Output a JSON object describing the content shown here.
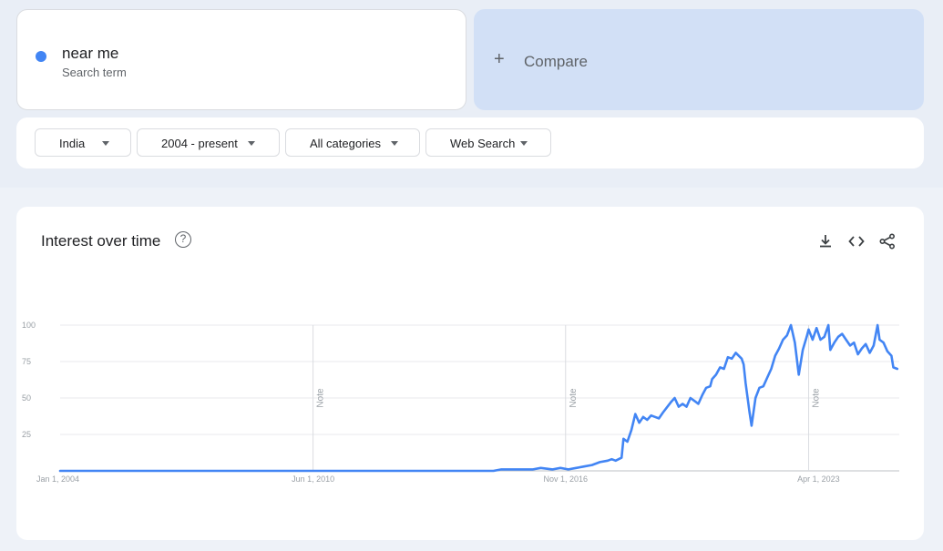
{
  "search_term": {
    "name": "near me",
    "type": "Search term",
    "color": "#4285f4"
  },
  "compare": {
    "plus": "+",
    "label": "Compare"
  },
  "filters": [
    {
      "label": "India"
    },
    {
      "label": "2004 - present"
    },
    {
      "label": "All categories"
    },
    {
      "label": "Web Search"
    }
  ],
  "chart_header": {
    "title": "Interest over time",
    "help": "?"
  },
  "icons": {
    "download": "download-icon",
    "embed": "embed-icon",
    "share": "share-icon"
  },
  "chart_data": {
    "type": "line",
    "title": "Interest over time",
    "xlabel": "",
    "ylabel": "",
    "ylim": [
      0,
      100
    ],
    "yticks": [
      25,
      50,
      75,
      100
    ],
    "xticks": [
      {
        "label": "Jan 1, 2004",
        "x": 2004.0
      },
      {
        "label": "Jun 1, 2010",
        "x": 2010.42
      },
      {
        "label": "Nov 1, 2016",
        "x": 2016.83
      },
      {
        "label": "Apr 1, 2023",
        "x": 2023.25
      }
    ],
    "notes": [
      {
        "label": "Note",
        "x": 2010.42
      },
      {
        "label": "Note",
        "x": 2016.83
      },
      {
        "label": "Note",
        "x": 2023.0
      }
    ],
    "xlim": [
      2004.0,
      2025.3
    ],
    "grid": true,
    "series": [
      {
        "color": "#4285f4",
        "points": [
          [
            2004.0,
            0
          ],
          [
            2008.0,
            0
          ],
          [
            2012.0,
            0
          ],
          [
            2014.0,
            0
          ],
          [
            2015.0,
            0
          ],
          [
            2015.2,
            1
          ],
          [
            2015.6,
            1
          ],
          [
            2016.0,
            1
          ],
          [
            2016.2,
            2
          ],
          [
            2016.5,
            1
          ],
          [
            2016.7,
            2
          ],
          [
            2016.9,
            1
          ],
          [
            2017.1,
            2
          ],
          [
            2017.3,
            3
          ],
          [
            2017.5,
            4
          ],
          [
            2017.7,
            6
          ],
          [
            2017.9,
            7
          ],
          [
            2018.0,
            8
          ],
          [
            2018.1,
            7
          ],
          [
            2018.25,
            9
          ],
          [
            2018.3,
            22
          ],
          [
            2018.4,
            20
          ],
          [
            2018.5,
            28
          ],
          [
            2018.6,
            39
          ],
          [
            2018.7,
            33
          ],
          [
            2018.8,
            37
          ],
          [
            2018.9,
            35
          ],
          [
            2019.0,
            38
          ],
          [
            2019.1,
            37
          ],
          [
            2019.2,
            36
          ],
          [
            2019.3,
            40
          ],
          [
            2019.5,
            47
          ],
          [
            2019.6,
            50
          ],
          [
            2019.7,
            44
          ],
          [
            2019.8,
            46
          ],
          [
            2019.9,
            44
          ],
          [
            2020.0,
            50
          ],
          [
            2020.1,
            48
          ],
          [
            2020.2,
            46
          ],
          [
            2020.3,
            52
          ],
          [
            2020.4,
            57
          ],
          [
            2020.5,
            58
          ],
          [
            2020.55,
            63
          ],
          [
            2020.65,
            66
          ],
          [
            2020.75,
            71
          ],
          [
            2020.85,
            70
          ],
          [
            2020.95,
            78
          ],
          [
            2021.05,
            77
          ],
          [
            2021.15,
            81
          ],
          [
            2021.3,
            77
          ],
          [
            2021.35,
            73
          ],
          [
            2021.4,
            60
          ],
          [
            2021.5,
            40
          ],
          [
            2021.55,
            31
          ],
          [
            2021.65,
            50
          ],
          [
            2021.75,
            57
          ],
          [
            2021.85,
            58
          ],
          [
            2021.95,
            64
          ],
          [
            2022.05,
            70
          ],
          [
            2022.15,
            79
          ],
          [
            2022.25,
            84
          ],
          [
            2022.35,
            90
          ],
          [
            2022.45,
            93
          ],
          [
            2022.55,
            100
          ],
          [
            2022.65,
            88
          ],
          [
            2022.75,
            66
          ],
          [
            2022.85,
            83
          ],
          [
            2022.95,
            92
          ],
          [
            2023.0,
            97
          ],
          [
            2023.1,
            90
          ],
          [
            2023.2,
            98
          ],
          [
            2023.3,
            90
          ],
          [
            2023.4,
            92
          ],
          [
            2023.5,
            100
          ],
          [
            2023.55,
            83
          ],
          [
            2023.65,
            88
          ],
          [
            2023.75,
            92
          ],
          [
            2023.85,
            94
          ],
          [
            2023.95,
            90
          ],
          [
            2024.05,
            86
          ],
          [
            2024.15,
            88
          ],
          [
            2024.25,
            80
          ],
          [
            2024.35,
            84
          ],
          [
            2024.45,
            87
          ],
          [
            2024.55,
            81
          ],
          [
            2024.65,
            86
          ],
          [
            2024.75,
            100
          ],
          [
            2024.8,
            90
          ],
          [
            2024.9,
            88
          ],
          [
            2025.0,
            82
          ],
          [
            2025.1,
            79
          ],
          [
            2025.15,
            71
          ],
          [
            2025.25,
            70
          ]
        ]
      }
    ]
  }
}
